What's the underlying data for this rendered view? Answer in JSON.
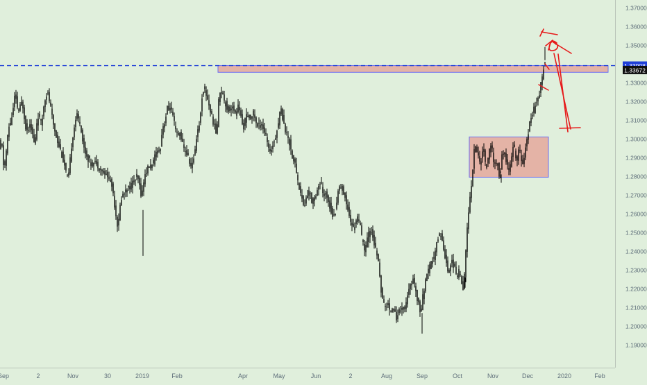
{
  "chart_data": {
    "type": "candlestick",
    "x_tick_labels": [
      "Sep",
      "2",
      "Nov",
      "30",
      "2019",
      "Feb",
      "Apr",
      "May",
      "Jun",
      "2",
      "Aug",
      "Sep",
      "Oct",
      "Nov",
      "Dec",
      "2020",
      "Feb"
    ],
    "y_tick_labels": [
      "1.37000",
      "1.36000",
      "1.35000",
      "1.34000",
      "1.33000",
      "1.32000",
      "1.31000",
      "1.30000",
      "1.29000",
      "1.28000",
      "1.27000",
      "1.26000",
      "1.25000",
      "1.24000",
      "1.23000",
      "1.22000",
      "1.21000",
      "1.20000",
      "1.19000"
    ],
    "y_ticks": [
      1.37,
      1.36,
      1.35,
      1.34,
      1.33,
      1.32,
      1.31,
      1.3,
      1.29,
      1.28,
      1.27,
      1.26,
      1.25,
      1.24,
      1.23,
      1.22,
      1.21,
      1.2,
      1.19
    ],
    "ylim": [
      1.183,
      1.373
    ],
    "price_path": [
      [
        0,
        1.292
      ],
      [
        4,
        1.3
      ],
      [
        8,
        1.282
      ],
      [
        14,
        1.305
      ],
      [
        20,
        1.313
      ],
      [
        24,
        1.325
      ],
      [
        28,
        1.314
      ],
      [
        34,
        1.32
      ],
      [
        40,
        1.304
      ],
      [
        46,
        1.308
      ],
      [
        52,
        1.296
      ],
      [
        56,
        1.313
      ],
      [
        62,
        1.308
      ],
      [
        66,
        1.321
      ],
      [
        70,
        1.325
      ],
      [
        74,
        1.319
      ],
      [
        78,
        1.309
      ],
      [
        84,
        1.3
      ],
      [
        90,
        1.293
      ],
      [
        96,
        1.284
      ],
      [
        100,
        1.277
      ],
      [
        106,
        1.3
      ],
      [
        112,
        1.313
      ],
      [
        118,
        1.308
      ],
      [
        122,
        1.296
      ],
      [
        128,
        1.29
      ],
      [
        134,
        1.286
      ],
      [
        140,
        1.288
      ],
      [
        146,
        1.284
      ],
      [
        152,
        1.282
      ],
      [
        158,
        1.28
      ],
      [
        164,
        1.274
      ],
      [
        168,
        1.262
      ],
      [
        172,
        1.252
      ],
      [
        176,
        1.268
      ],
      [
        182,
        1.272
      ],
      [
        188,
        1.274
      ],
      [
        194,
        1.277
      ],
      [
        200,
        1.28
      ],
      [
        206,
        1.269
      ],
      [
        210,
        1.28
      ],
      [
        216,
        1.285
      ],
      [
        222,
        1.286
      ],
      [
        228,
        1.294
      ],
      [
        232,
        1.293
      ],
      [
        236,
        1.306
      ],
      [
        240,
        1.31
      ],
      [
        244,
        1.318
      ],
      [
        248,
        1.316
      ],
      [
        252,
        1.31
      ],
      [
        256,
        1.302
      ],
      [
        262,
        1.303
      ],
      [
        266,
        1.295
      ],
      [
        270,
        1.293
      ],
      [
        274,
        1.289
      ],
      [
        278,
        1.284
      ],
      [
        282,
        1.292
      ],
      [
        286,
        1.304
      ],
      [
        290,
        1.309
      ],
      [
        294,
        1.327
      ],
      [
        298,
        1.325
      ],
      [
        302,
        1.32
      ],
      [
        306,
        1.313
      ],
      [
        310,
        1.308
      ],
      [
        314,
        1.302
      ],
      [
        318,
        1.326
      ],
      [
        322,
        1.325
      ],
      [
        326,
        1.32
      ],
      [
        330,
        1.315
      ],
      [
        336,
        1.318
      ],
      [
        340,
        1.313
      ],
      [
        346,
        1.318
      ],
      [
        352,
        1.305
      ],
      [
        356,
        1.312
      ],
      [
        362,
        1.311
      ],
      [
        368,
        1.314
      ],
      [
        372,
        1.306
      ],
      [
        378,
        1.309
      ],
      [
        382,
        1.305
      ],
      [
        386,
        1.3
      ],
      [
        390,
        1.292
      ],
      [
        396,
        1.298
      ],
      [
        402,
        1.306
      ],
      [
        406,
        1.317
      ],
      [
        410,
        1.31
      ],
      [
        414,
        1.303
      ],
      [
        418,
        1.3
      ],
      [
        422,
        1.292
      ],
      [
        428,
        1.285
      ],
      [
        432,
        1.275
      ],
      [
        436,
        1.27
      ],
      [
        440,
        1.263
      ],
      [
        444,
        1.27
      ],
      [
        448,
        1.272
      ],
      [
        452,
        1.265
      ],
      [
        456,
        1.27
      ],
      [
        460,
        1.274
      ],
      [
        464,
        1.277
      ],
      [
        468,
        1.269
      ],
      [
        472,
        1.271
      ],
      [
        476,
        1.266
      ],
      [
        480,
        1.26
      ],
      [
        484,
        1.258
      ],
      [
        488,
        1.27
      ],
      [
        492,
        1.276
      ],
      [
        496,
        1.272
      ],
      [
        500,
        1.267
      ],
      [
        504,
        1.262
      ],
      [
        508,
        1.254
      ],
      [
        512,
        1.252
      ],
      [
        516,
        1.259
      ],
      [
        520,
        1.255
      ],
      [
        524,
        1.245
      ],
      [
        528,
        1.24
      ],
      [
        532,
        1.248
      ],
      [
        536,
        1.252
      ],
      [
        540,
        1.246
      ],
      [
        544,
        1.239
      ],
      [
        548,
        1.232
      ],
      [
        552,
        1.215
      ],
      [
        556,
        1.21
      ],
      [
        560,
        1.212
      ],
      [
        564,
        1.207
      ],
      [
        568,
        1.212
      ],
      [
        572,
        1.204
      ],
      [
        576,
        1.207
      ],
      [
        580,
        1.211
      ],
      [
        584,
        1.208
      ],
      [
        588,
        1.214
      ],
      [
        592,
        1.22
      ],
      [
        596,
        1.225
      ],
      [
        600,
        1.221
      ],
      [
        604,
        1.213
      ],
      [
        608,
        1.207
      ],
      [
        612,
        1.218
      ],
      [
        616,
        1.226
      ],
      [
        620,
        1.23
      ],
      [
        624,
        1.235
      ],
      [
        628,
        1.237
      ],
      [
        632,
        1.246
      ],
      [
        636,
        1.251
      ],
      [
        640,
        1.243
      ],
      [
        644,
        1.236
      ],
      [
        648,
        1.228
      ],
      [
        652,
        1.235
      ],
      [
        656,
        1.232
      ],
      [
        660,
        1.226
      ],
      [
        664,
        1.23
      ],
      [
        668,
        1.222
      ],
      [
        670,
        1.22
      ],
      [
        674,
        1.247
      ],
      [
        678,
        1.265
      ],
      [
        682,
        1.28
      ],
      [
        686,
        1.298
      ],
      [
        690,
        1.291
      ],
      [
        694,
        1.287
      ],
      [
        698,
        1.296
      ],
      [
        702,
        1.284
      ],
      [
        706,
        1.292
      ],
      [
        710,
        1.297
      ],
      [
        714,
        1.285
      ],
      [
        718,
        1.288
      ],
      [
        722,
        1.279
      ],
      [
        726,
        1.294
      ],
      [
        730,
        1.29
      ],
      [
        734,
        1.283
      ],
      [
        738,
        1.287
      ],
      [
        742,
        1.298
      ],
      [
        746,
        1.287
      ],
      [
        750,
        1.295
      ],
      [
        754,
        1.286
      ],
      [
        758,
        1.293
      ],
      [
        762,
        1.3
      ],
      [
        766,
        1.312
      ],
      [
        770,
        1.314
      ],
      [
        774,
        1.32
      ],
      [
        778,
        1.323
      ],
      [
        780,
        1.327
      ],
      [
        784,
        1.335
      ],
      [
        786,
        1.342
      ]
    ],
    "horizontal_line": {
      "value": 1.3391,
      "label": "1.33908",
      "style": "dashed",
      "color": "#1f3fd8"
    },
    "current_price": {
      "value": 1.33672,
      "label": "1.33672"
    },
    "zones": [
      {
        "name": "resistance-zone",
        "x_start": 314,
        "x_end": 876,
        "y_top": 1.3391,
        "y_bottom": 1.3355
      },
      {
        "name": "consolidation-zone",
        "x_start": 676,
        "x_end": 790,
        "y_top": 1.301,
        "y_bottom": 1.2795
      }
    ],
    "colors": {
      "background": "#e0efdc",
      "candles": "#000000",
      "zone_fill": "#e4a89c",
      "zone_stroke": "#6f6ff0",
      "annotation": "#e61919",
      "axis_text": "#5d6d79",
      "price_label_bg": "#1f3fd8",
      "current_label_bg": "#101010"
    },
    "grid": false
  }
}
